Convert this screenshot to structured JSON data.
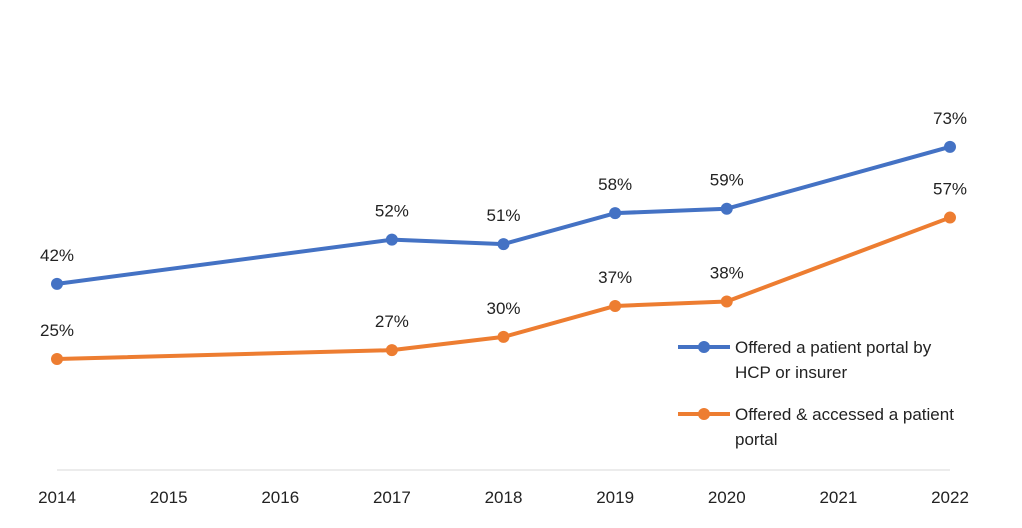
{
  "chart_data": {
    "type": "line",
    "title": "",
    "xlabel": "",
    "ylabel": "",
    "x": [
      2014,
      2015,
      2016,
      2017,
      2018,
      2019,
      2020,
      2021,
      2022
    ],
    "x_tick_labels": [
      "2014",
      "2015",
      "2016",
      "2017",
      "2018",
      "2019",
      "2020",
      "2021",
      "2022"
    ],
    "ylim": [
      0,
      100
    ],
    "grid": false,
    "legend_position": "right",
    "series": [
      {
        "name": "Offered a patient portal by HCP or insurer",
        "legend_lines": [
          "Offered a patient portal by",
          "HCP or insurer"
        ],
        "color": "#4472C4",
        "points": [
          {
            "x": 2014,
            "y": 42,
            "label": "42%"
          },
          {
            "x": 2017,
            "y": 52,
            "label": "52%"
          },
          {
            "x": 2018,
            "y": 51,
            "label": "51%"
          },
          {
            "x": 2019,
            "y": 58,
            "label": "58%"
          },
          {
            "x": 2020,
            "y": 59,
            "label": "59%"
          },
          {
            "x": 2022,
            "y": 73,
            "label": "73%"
          }
        ]
      },
      {
        "name": "Offered & accessed a patient portal",
        "legend_lines": [
          "Offered & accessed a patient",
          "portal"
        ],
        "color": "#ED7D31",
        "points": [
          {
            "x": 2014,
            "y": 25,
            "label": "25%"
          },
          {
            "x": 2017,
            "y": 27,
            "label": "27%"
          },
          {
            "x": 2018,
            "y": 30,
            "label": "30%"
          },
          {
            "x": 2019,
            "y": 37,
            "label": "37%"
          },
          {
            "x": 2020,
            "y": 38,
            "label": "38%"
          },
          {
            "x": 2022,
            "y": 57,
            "label": "57%"
          }
        ]
      }
    ]
  }
}
